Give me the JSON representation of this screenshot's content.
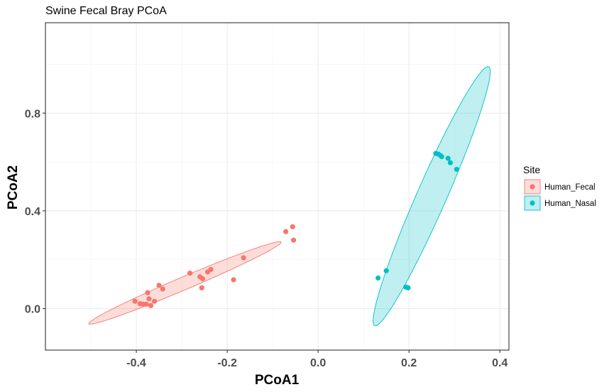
{
  "chart_data": {
    "type": "scatter",
    "title": "Swine Fecal Bray PCoA",
    "xlabel": "PCoA1",
    "ylabel": "PCoA2",
    "xlim": [
      -0.6,
      0.42
    ],
    "ylim": [
      -0.17,
      1.17
    ],
    "x_ticks": [
      -0.4,
      -0.2,
      0.0,
      0.2,
      0.4
    ],
    "x_tick_labels": [
      "-0.4",
      "-0.2",
      "0.0",
      "0.2",
      "0.4"
    ],
    "y_ticks": [
      0.0,
      0.4,
      0.8
    ],
    "y_tick_labels": [
      "0.0",
      "0.4",
      "0.8"
    ],
    "grid": true,
    "legend": {
      "title": "Site",
      "position": "right"
    },
    "series": [
      {
        "name": "Human_Fecal",
        "color": "#F8766D",
        "fill": "#F8766D",
        "ellipse": {
          "cx": -0.293,
          "cy": 0.105,
          "semi_major": 0.27,
          "semi_minor": 0.0225,
          "angle_deg": 38.5
        },
        "points": [
          [
            -0.403,
            0.03
          ],
          [
            -0.392,
            0.02
          ],
          [
            -0.385,
            0.018
          ],
          [
            -0.378,
            0.018
          ],
          [
            -0.375,
            0.065
          ],
          [
            -0.372,
            0.04
          ],
          [
            -0.368,
            0.012
          ],
          [
            -0.36,
            0.03
          ],
          [
            -0.35,
            0.095
          ],
          [
            -0.342,
            0.08
          ],
          [
            -0.282,
            0.145
          ],
          [
            -0.26,
            0.13
          ],
          [
            -0.256,
            0.085
          ],
          [
            -0.254,
            0.122
          ],
          [
            -0.243,
            0.15
          ],
          [
            -0.236,
            0.16
          ],
          [
            -0.186,
            0.118
          ],
          [
            -0.164,
            0.208
          ],
          [
            -0.071,
            0.315
          ],
          [
            -0.056,
            0.335
          ],
          [
            -0.054,
            0.28
          ]
        ]
      },
      {
        "name": "Human_Nasal",
        "color": "#00BFC4",
        "fill": "#00BFC4",
        "ellipse": {
          "cx": 0.25,
          "cy": 0.46,
          "semi_major": 0.545,
          "semi_minor": 0.0345,
          "angle_deg": 76.8
        },
        "points": [
          [
            0.132,
            0.125
          ],
          [
            0.15,
            0.155
          ],
          [
            0.193,
            0.088
          ],
          [
            0.198,
            0.085
          ],
          [
            0.259,
            0.635
          ],
          [
            0.265,
            0.632
          ],
          [
            0.27,
            0.625
          ],
          [
            0.272,
            0.622
          ],
          [
            0.286,
            0.615
          ],
          [
            0.291,
            0.597
          ],
          [
            0.305,
            0.57
          ]
        ]
      }
    ]
  }
}
